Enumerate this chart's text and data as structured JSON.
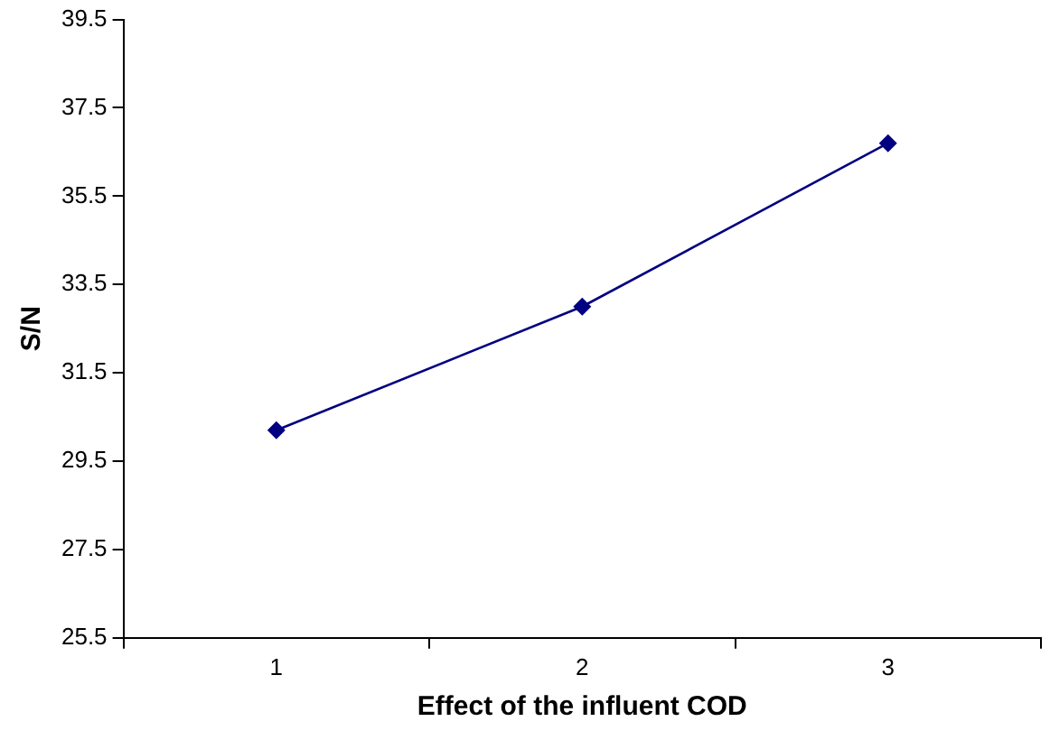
{
  "chart_data": {
    "type": "line",
    "xlabel": "Effect of the influent COD",
    "ylabel": "S/N",
    "categories": [
      "1",
      "2",
      "3"
    ],
    "series": [
      {
        "color": "#000080",
        "values": [
          30.2,
          33.0,
          36.7
        ]
      }
    ],
    "ylim": [
      25.5,
      39.5
    ],
    "yticks": [
      25.5,
      27.5,
      29.5,
      31.5,
      33.5,
      35.5,
      37.5,
      39.5
    ],
    "grid": false,
    "legend": false,
    "marker": "diamond",
    "line_style": "solid"
  }
}
